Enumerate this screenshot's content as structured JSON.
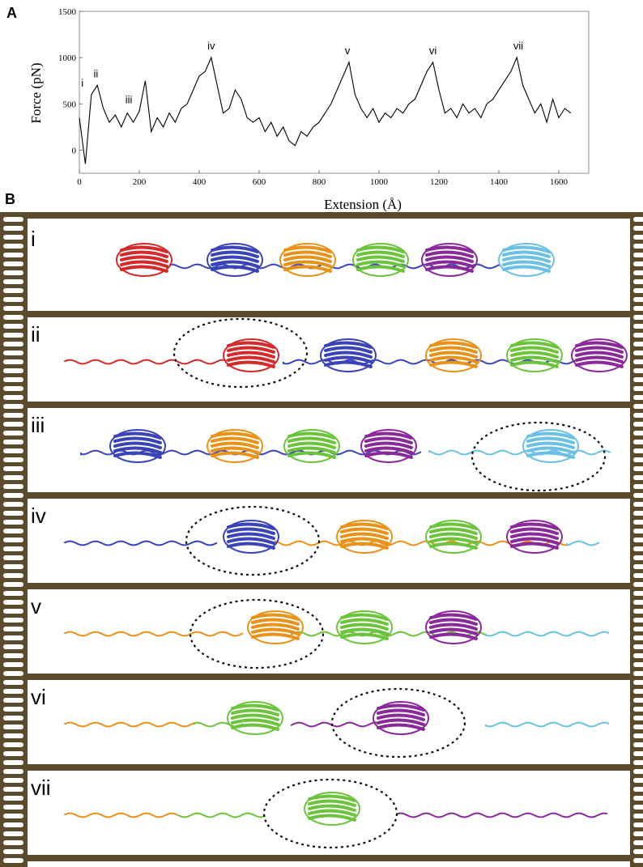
{
  "panel_labels": [
    "A",
    "B"
  ],
  "chart_data": {
    "type": "line",
    "y_label": "Force (pN)",
    "x_label": "Extension (Å)",
    "color": "#000000",
    "x": [
      0,
      20,
      40,
      60,
      80,
      100,
      120,
      140,
      160,
      180,
      200,
      220,
      240,
      260,
      280,
      300,
      320,
      340,
      360,
      380,
      400,
      420,
      440,
      460,
      480,
      500,
      520,
      540,
      560,
      580,
      600,
      620,
      640,
      660,
      680,
      700,
      720,
      740,
      760,
      780,
      800,
      820,
      840,
      860,
      880,
      900,
      920,
      940,
      960,
      980,
      1000,
      1020,
      1040,
      1060,
      1080,
      1100,
      1120,
      1140,
      1160,
      1180,
      1200,
      1220,
      1240,
      1260,
      1280,
      1300,
      1320,
      1340,
      1360,
      1380,
      1400,
      1420,
      1440,
      1460,
      1480,
      1500,
      1520,
      1540,
      1560,
      1580,
      1600,
      1620,
      1640
    ],
    "values": [
      350,
      -150,
      600,
      700,
      450,
      300,
      380,
      250,
      400,
      300,
      420,
      750,
      200,
      350,
      250,
      400,
      300,
      450,
      500,
      650,
      800,
      850,
      1000,
      700,
      400,
      450,
      650,
      550,
      350,
      300,
      350,
      200,
      300,
      150,
      250,
      100,
      50,
      200,
      150,
      250,
      300,
      400,
      500,
      650,
      800,
      950,
      600,
      450,
      350,
      450,
      300,
      400,
      350,
      450,
      400,
      500,
      550,
      700,
      850,
      950,
      650,
      400,
      450,
      350,
      500,
      400,
      450,
      350,
      500,
      550,
      650,
      750,
      850,
      1000,
      700,
      550,
      400,
      500,
      300,
      550,
      350,
      450,
      400
    ],
    "xlim": [
      0,
      1700
    ],
    "ylim": [
      -250,
      1500
    ],
    "xticks": [
      0,
      200,
      400,
      600,
      800,
      1000,
      1200,
      1400,
      1600
    ],
    "yticks": [
      0,
      500,
      1000,
      1500
    ],
    "annotations": [
      {
        "text": "i",
        "x": 10
      },
      {
        "text": "ii",
        "x": 55
      },
      {
        "text": "iii",
        "x": 165
      },
      {
        "text": "iv",
        "x": 440
      },
      {
        "text": "v",
        "x": 895
      },
      {
        "text": "vi",
        "x": 1180
      },
      {
        "text": "vii",
        "x": 1465
      }
    ]
  },
  "frames": [
    "i",
    "ii",
    "iii",
    "iv",
    "v",
    "vi",
    "vii"
  ]
}
